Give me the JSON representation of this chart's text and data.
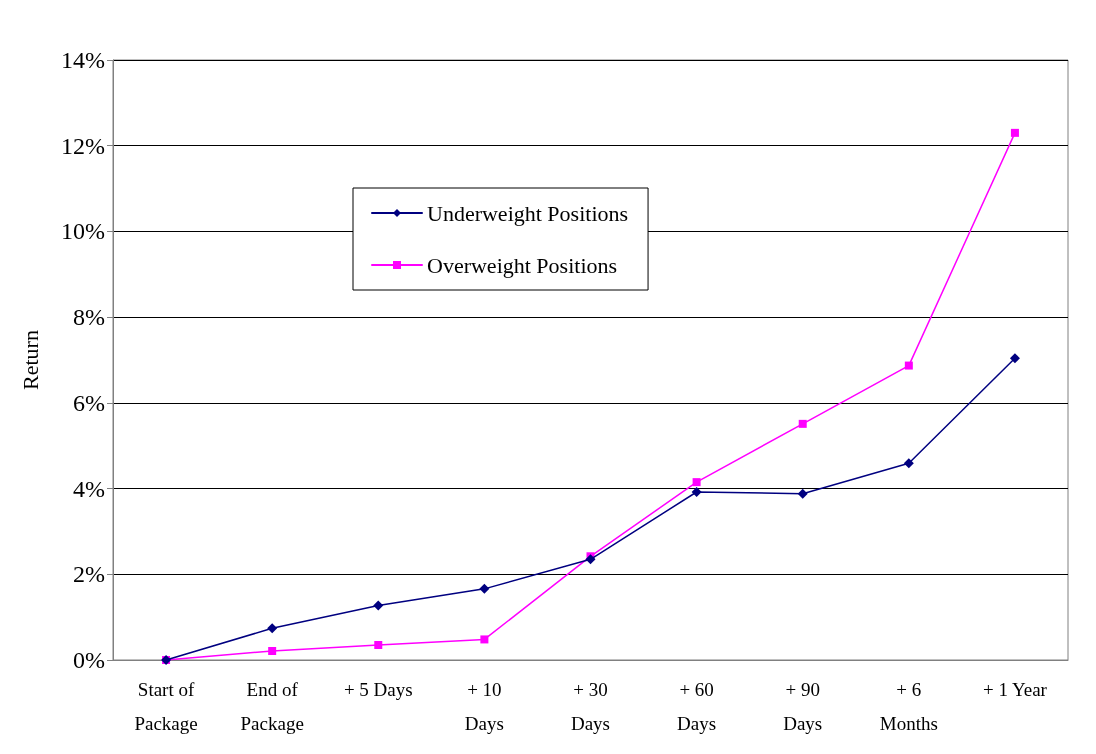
{
  "chart_data": {
    "type": "line",
    "ylabel": "Return",
    "categories": [
      "Start of\nPackage",
      "End of\nPackage",
      "+ 5 Days",
      "+ 10\nDays",
      "+ 30\nDays",
      "+ 60\nDays",
      "+ 90\nDays",
      "+ 6\nMonths",
      "+ 1 Year"
    ],
    "series": [
      {
        "name": "Underweight Positions",
        "color": "#000080",
        "marker": "diamond",
        "values": [
          0,
          0.74,
          1.27,
          1.66,
          2.35,
          3.92,
          3.88,
          4.59,
          7.04
        ]
      },
      {
        "name": "Overweight Positions",
        "color": "#ff00ff",
        "marker": "square",
        "values": [
          0,
          0.21,
          0.35,
          0.48,
          2.42,
          4.15,
          5.51,
          6.87,
          12.3
        ]
      }
    ],
    "ylim": [
      0,
      14
    ],
    "yticks": [
      {
        "value": 0,
        "label": "0%"
      },
      {
        "value": 2,
        "label": "2%"
      },
      {
        "value": 4,
        "label": "4%"
      },
      {
        "value": 6,
        "label": "6%"
      },
      {
        "value": 8,
        "label": "8%"
      },
      {
        "value": 10,
        "label": "10%"
      },
      {
        "value": 12,
        "label": "12%"
      },
      {
        "value": 14,
        "label": "14%"
      }
    ],
    "grid": "y",
    "legend": "top left",
    "line_style": "solid"
  }
}
